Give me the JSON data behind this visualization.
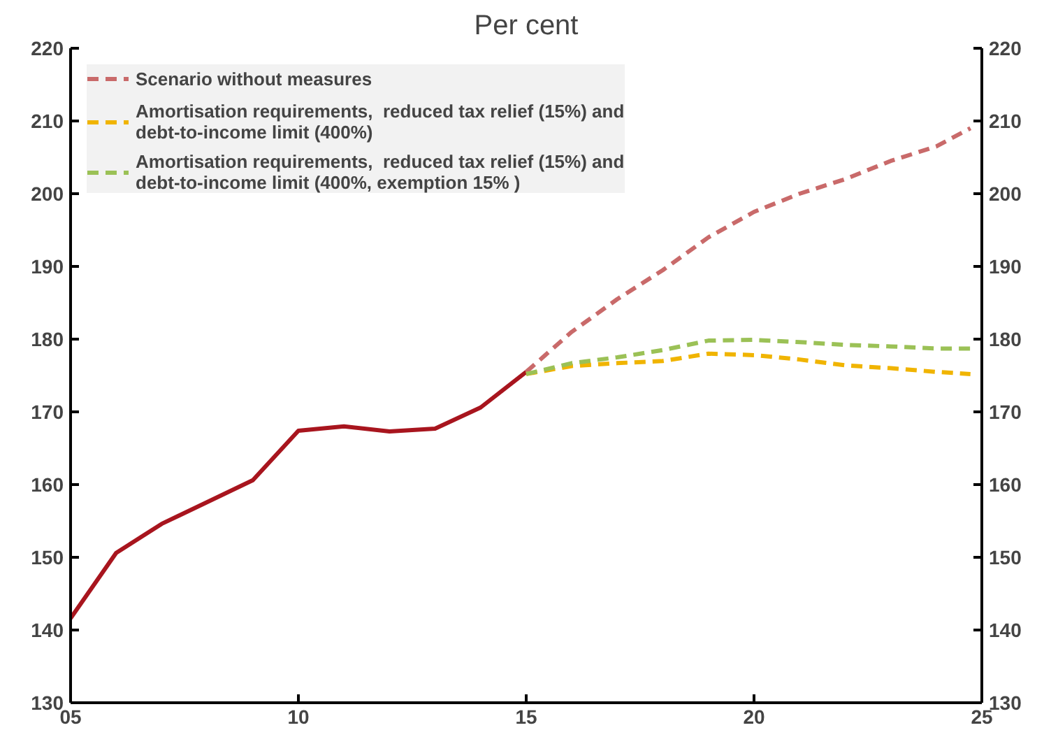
{
  "chart_data": {
    "type": "line",
    "title": "Per cent",
    "xlim": [
      5,
      25
    ],
    "xticks": [
      {
        "value": 5,
        "label": "05"
      },
      {
        "value": 10,
        "label": "10"
      },
      {
        "value": 15,
        "label": "15"
      },
      {
        "value": 20,
        "label": "20"
      },
      {
        "value": 25,
        "label": "25"
      }
    ],
    "ylim": [
      130,
      220
    ],
    "yticks": [
      130,
      140,
      150,
      160,
      170,
      180,
      190,
      200,
      210,
      220
    ],
    "y2lim": [
      130,
      220
    ],
    "y2ticks": [
      130,
      140,
      150,
      160,
      170,
      180,
      190,
      200,
      210,
      220
    ],
    "grid": false,
    "legend": "top left",
    "marker": "none",
    "series": [
      {
        "color": "#a8151e",
        "line_style": "solid",
        "x": [
          5,
          6,
          7,
          8,
          9,
          10,
          11,
          12,
          13,
          14,
          15
        ],
        "values": [
          141.6,
          150.6,
          154.6,
          157.6,
          160.6,
          167.4,
          168.0,
          167.3,
          167.7,
          170.6,
          175.5
        ]
      },
      {
        "name": "Scenario without measures",
        "color": "#c96a6a",
        "line_style": "dashed",
        "x": [
          15,
          16,
          17,
          18,
          19,
          20,
          21,
          22,
          23,
          24,
          24.75
        ],
        "values": [
          175.5,
          181,
          185.5,
          189.5,
          194,
          197.5,
          200,
          202,
          204.5,
          206.5,
          209
        ]
      },
      {
        "name": "Amortisation requirements,  reduced tax relief (15%) and\ndebt-to-income limit (400%)",
        "color": "#f0b400",
        "line_style": "dashed",
        "x": [
          15,
          16,
          17,
          18,
          19,
          20,
          21,
          22,
          23,
          24,
          24.75
        ],
        "values": [
          175.2,
          176.3,
          176.7,
          177.0,
          178.0,
          177.8,
          177.2,
          176.4,
          176.0,
          175.5,
          175.2
        ]
      },
      {
        "name": "Amortisation requirements,  reduced tax relief (15%) and\ndebt-to-income limit (400%, exemption 15% )",
        "color": "#9bc156",
        "line_style": "dashed",
        "x": [
          15,
          16,
          17,
          18,
          19,
          20,
          21,
          22,
          23,
          24,
          24.75
        ],
        "values": [
          175.2,
          176.7,
          177.5,
          178.5,
          179.8,
          179.9,
          179.6,
          179.2,
          179.0,
          178.7,
          178.7
        ]
      }
    ]
  }
}
